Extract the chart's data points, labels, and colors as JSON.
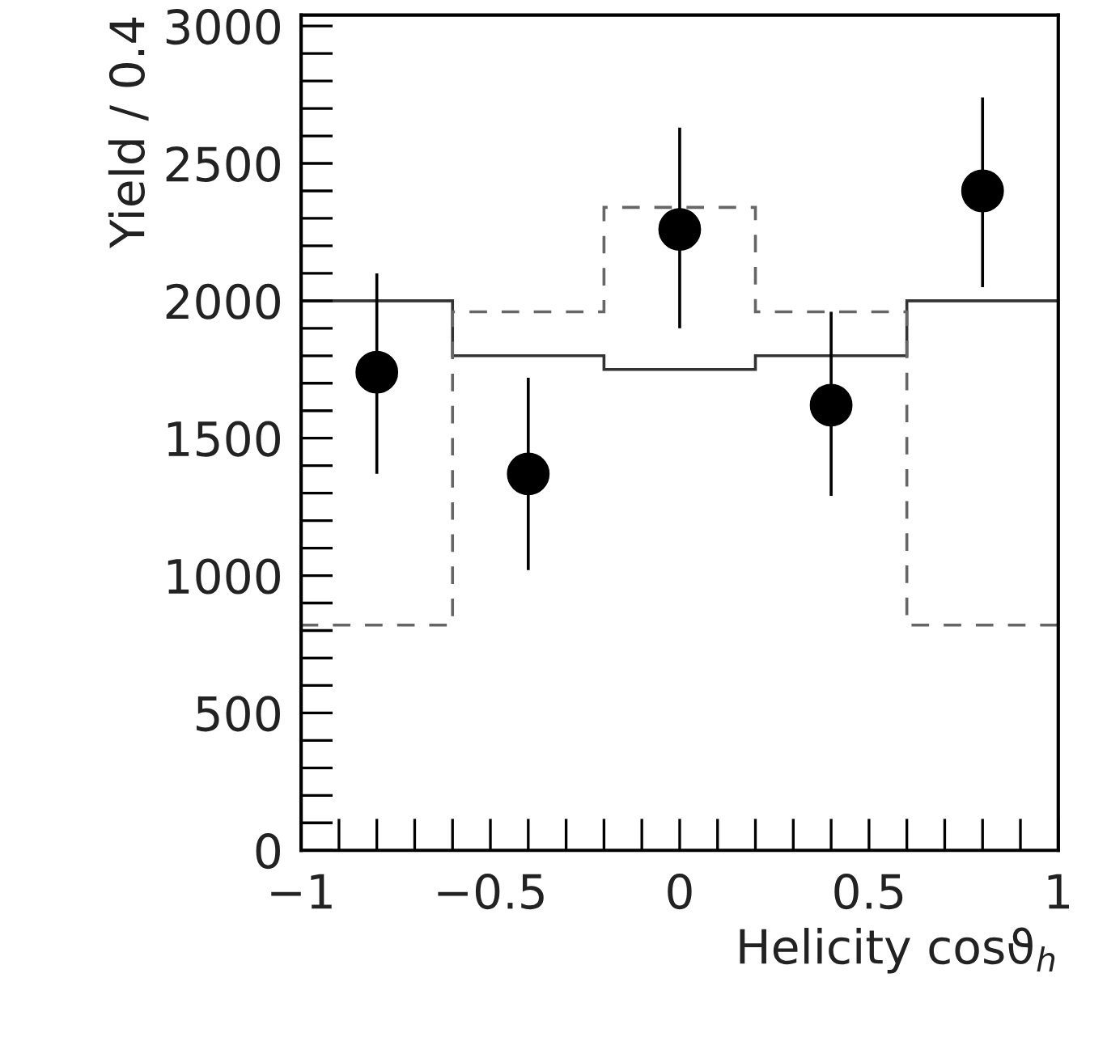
{
  "chart_data": {
    "type": "histogram",
    "xlabel": "Helicity cosϑ$_{h}$",
    "ylabel": "Yield / 0.4",
    "bins": [
      -1,
      -0.6,
      -0.2,
      0.2,
      0.6,
      1
    ],
    "series": [
      {
        "color": "#333333",
        "line_style": "solid",
        "values": [
          2000,
          1800,
          1750,
          1800,
          2000
        ]
      },
      {
        "type": "histogram",
        "color": "#666666",
        "line_style": "dashed",
        "values": [
          820,
          1960,
          2340,
          1960,
          820
        ]
      },
      {
        "type": "scatter",
        "color": "#000000",
        "marker": "circle",
        "x": [
          -0.8,
          -0.4,
          0,
          0.4,
          0.8
        ],
        "values": [
          1740,
          1370,
          2260,
          1620,
          2400
        ],
        "errors": [
          [
            1370,
            2100
          ],
          [
            1020,
            1720
          ],
          [
            1900,
            2630
          ],
          [
            1290,
            1960
          ],
          [
            2050,
            2740
          ]
        ]
      }
    ],
    "xlim": [
      -1,
      1
    ],
    "xticks": [
      {
        "value": -1,
        "label": "−1"
      },
      {
        "value": -0.5,
        "label": "−0.5"
      },
      0,
      0.5,
      1
    ],
    "ylim": [
      0,
      3040
    ],
    "yticks": [
      0,
      500,
      1000,
      1500,
      2000,
      2500,
      3000
    ]
  }
}
